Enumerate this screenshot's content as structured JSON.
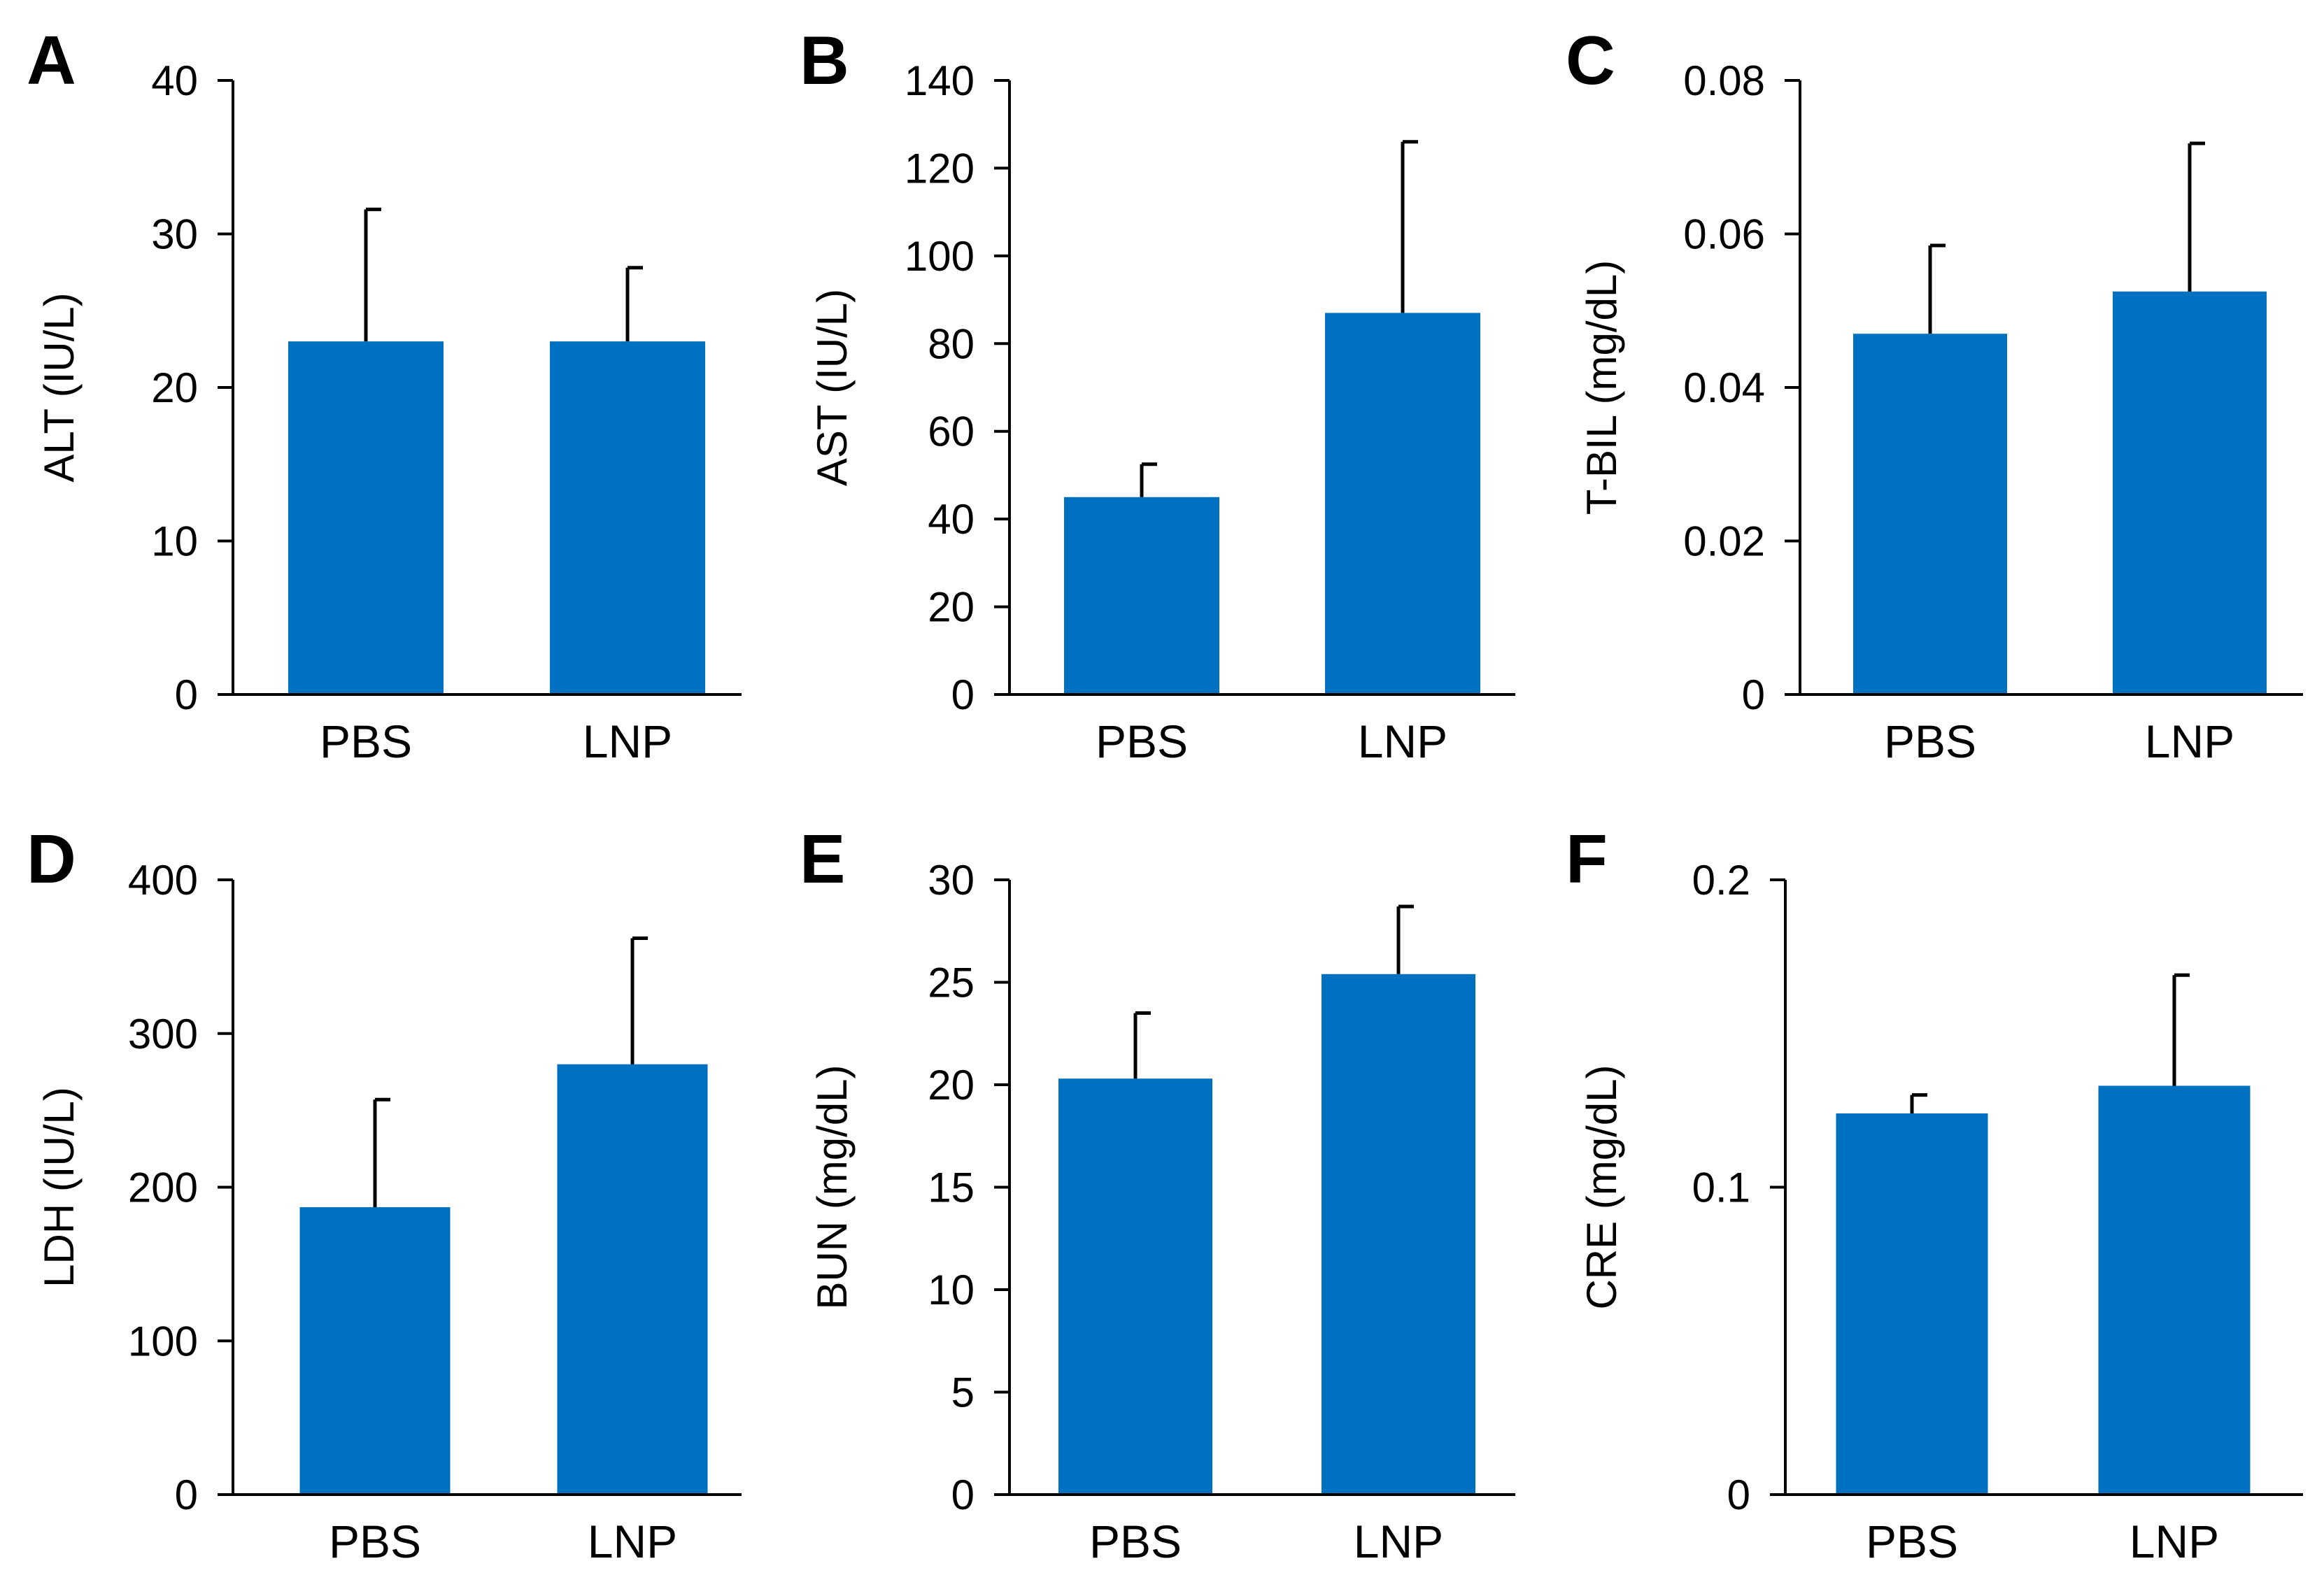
{
  "colors": {
    "bar": "#0070C0",
    "axis": "#000000",
    "error_bar": "#000000"
  },
  "chart_data": [
    {
      "type": "bar",
      "panel": "A",
      "title": "",
      "xlabel": "",
      "ylabel": "ALT (IU/L)",
      "categories": [
        "PBS",
        "LNP"
      ],
      "values": [
        23,
        23
      ],
      "errors": [
        8.6,
        4.8
      ],
      "ylim": [
        0,
        40
      ],
      "yticks": [
        0,
        10,
        20,
        30,
        40
      ],
      "ytick_labels": [
        "0",
        "10",
        "20",
        "30",
        "40"
      ],
      "grid": false
    },
    {
      "type": "bar",
      "panel": "B",
      "title": "",
      "xlabel": "",
      "ylabel": "AST (IU/L)",
      "categories": [
        "PBS",
        "LNP"
      ],
      "values": [
        45,
        87
      ],
      "errors": [
        7.5,
        39
      ],
      "ylim": [
        0,
        140
      ],
      "yticks": [
        0,
        20,
        40,
        60,
        80,
        100,
        120,
        140
      ],
      "ytick_labels": [
        "0",
        "20",
        "40",
        "60",
        "80",
        "100",
        "120",
        "140"
      ],
      "grid": false
    },
    {
      "type": "bar",
      "panel": "C",
      "title": "",
      "xlabel": "",
      "ylabel": "T-BIL (mg/dL)",
      "categories": [
        "PBS",
        "LNP"
      ],
      "values": [
        0.047,
        0.0525
      ],
      "errors": [
        0.0115,
        0.0193
      ],
      "ylim": [
        0,
        0.08
      ],
      "yticks": [
        0,
        0.02,
        0.04,
        0.06,
        0.08
      ],
      "ytick_labels": [
        "0",
        "0.02",
        "0.04",
        "0.06",
        "0.08"
      ],
      "grid": false
    },
    {
      "type": "bar",
      "panel": "D",
      "title": "",
      "xlabel": "",
      "ylabel": "LDH (IU/L)",
      "categories": [
        "PBS",
        "LNP"
      ],
      "values": [
        187,
        280
      ],
      "errors": [
        70,
        82
      ],
      "ylim": [
        0,
        400
      ],
      "yticks": [
        0,
        100,
        200,
        300,
        400
      ],
      "ytick_labels": [
        "0",
        "100",
        "200",
        "300",
        "400"
      ],
      "grid": false
    },
    {
      "type": "bar",
      "panel": "E",
      "title": "",
      "xlabel": "",
      "ylabel": "BUN (mg/dL)",
      "categories": [
        "PBS",
        "LNP"
      ],
      "values": [
        20.3,
        25.4
      ],
      "errors": [
        3.2,
        3.3
      ],
      "ylim": [
        0,
        30
      ],
      "yticks": [
        0,
        5,
        10,
        15,
        20,
        25,
        30
      ],
      "ytick_labels": [
        "0",
        "5",
        "10",
        "15",
        "20",
        "25",
        "30"
      ],
      "grid": false
    },
    {
      "type": "bar",
      "panel": "F",
      "title": "",
      "xlabel": "",
      "ylabel": "CRE (mg/dL)",
      "categories": [
        "PBS",
        "LNP"
      ],
      "values": [
        0.124,
        0.133
      ],
      "errors": [
        0.006,
        0.036
      ],
      "ylim": [
        0,
        0.2
      ],
      "yticks": [
        0,
        0.1,
        0.2
      ],
      "ytick_labels": [
        "0",
        "0.1",
        "0.2"
      ],
      "grid": false
    }
  ]
}
